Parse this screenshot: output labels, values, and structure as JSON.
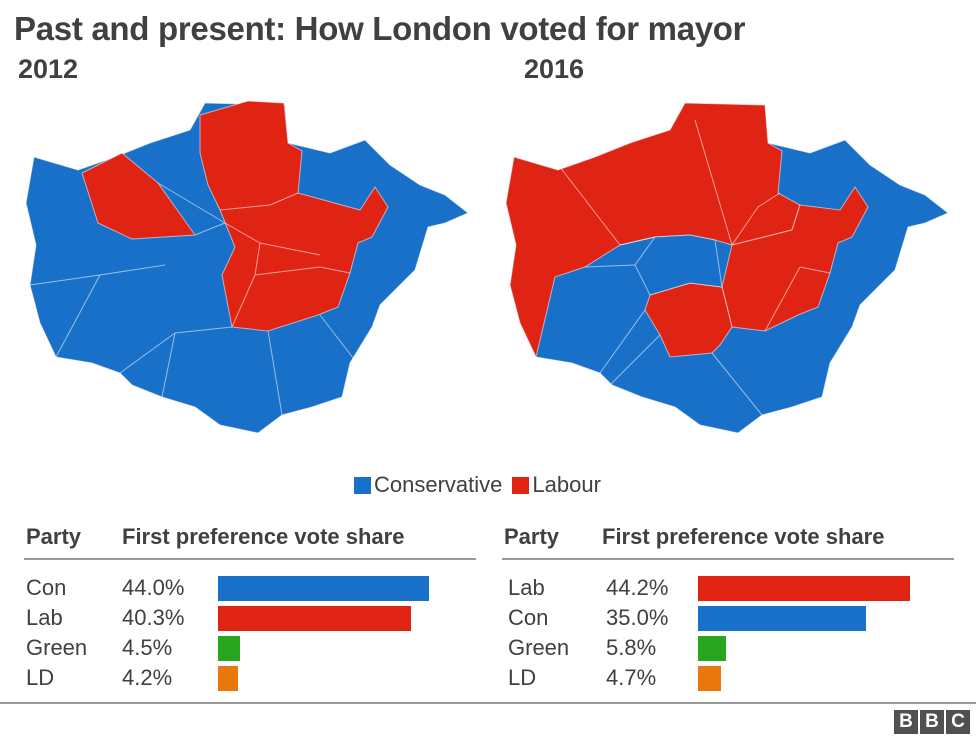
{
  "title": "Past and present: How London voted for mayor",
  "maps": [
    {
      "year": "2012"
    },
    {
      "year": "2016"
    }
  ],
  "colors": {
    "conservative": "#1870c8",
    "labour": "#e02414",
    "green": "#2aa520",
    "ld": "#e8780c"
  },
  "legend": [
    {
      "label": "Conservative",
      "color": "#1870c8"
    },
    {
      "label": "Labour",
      "color": "#e02414"
    }
  ],
  "tables": [
    {
      "col_party": "Party",
      "col_share": "First preference vote share",
      "rows": [
        {
          "party": "Con",
          "share": "44.0%",
          "value": 44.0,
          "color": "#1870c8"
        },
        {
          "party": "Lab",
          "share": "40.3%",
          "value": 40.3,
          "color": "#e02414"
        },
        {
          "party": "Green",
          "share": "4.5%",
          "value": 4.5,
          "color": "#2aa520"
        },
        {
          "party": "LD",
          "share": "4.2%",
          "value": 4.2,
          "color": "#e8780c"
        }
      ]
    },
    {
      "col_party": "Party",
      "col_share": "First preference vote share",
      "rows": [
        {
          "party": "Lab",
          "share": "44.2%",
          "value": 44.2,
          "color": "#e02414"
        },
        {
          "party": "Con",
          "share": "35.0%",
          "value": 35.0,
          "color": "#1870c8"
        },
        {
          "party": "Green",
          "share": "5.8%",
          "value": 5.8,
          "color": "#2aa520"
        },
        {
          "party": "LD",
          "share": "4.7%",
          "value": 4.7,
          "color": "#e8780c"
        }
      ]
    }
  ],
  "logo": [
    "B",
    "B",
    "C"
  ]
}
